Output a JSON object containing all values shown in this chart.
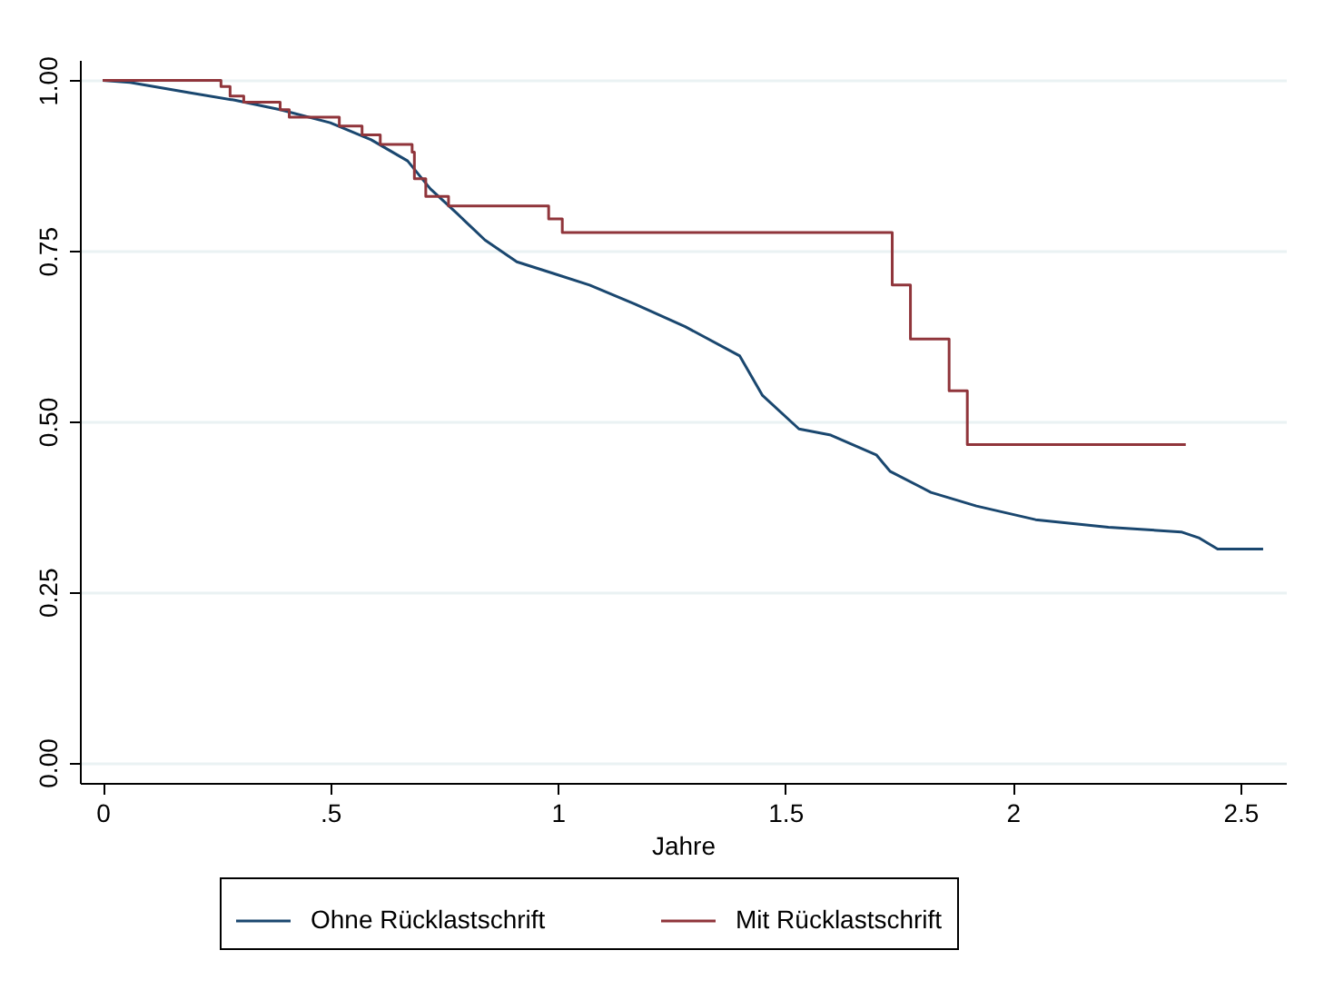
{
  "chart_data": {
    "type": "line",
    "xlabel": "Jahre",
    "xlim": [
      -0.05,
      2.6
    ],
    "xticks": [
      0,
      {
        "value": 0.5,
        "label": ".5"
      },
      1,
      1.5,
      2,
      2.5
    ],
    "ylim": [
      -0.03,
      1.03
    ],
    "yticks": [
      {
        "value": 0,
        "label": "0.00"
      },
      {
        "value": 0.25,
        "label": "0.25"
      },
      {
        "value": 0.5,
        "label": "0.50"
      },
      {
        "value": 0.75,
        "label": "0.75"
      },
      {
        "value": 1,
        "label": "1.00"
      }
    ],
    "grid": "y",
    "legend": "bottom",
    "series": [
      {
        "name": "Ohne Rücklastschrift",
        "color": "#1a476f",
        "x": [
          0,
          0.06,
          0.19,
          0.29,
          0.39,
          0.5,
          0.59,
          0.67,
          0.72,
          0.78,
          0.84,
          0.91,
          0.99,
          1.07,
          1.17,
          1.28,
          1.4,
          1.45,
          1.53,
          1.6,
          1.7,
          1.73,
          1.82,
          1.92,
          2.05,
          2.21,
          2.37,
          2.41,
          2.45,
          2.55
        ],
        "values": [
          1.0,
          0.997,
          0.982,
          0.971,
          0.957,
          0.938,
          0.913,
          0.882,
          0.841,
          0.804,
          0.766,
          0.734,
          0.717,
          0.7,
          0.672,
          0.639,
          0.596,
          0.538,
          0.489,
          0.48,
          0.451,
          0.427,
          0.396,
          0.376,
          0.356,
          0.345,
          0.338,
          0.329,
          0.313,
          0.313
        ]
      },
      {
        "name": "Mit Rücklastschrift",
        "color": "#90353b",
        "type": "step",
        "x": [
          0,
          0.26,
          0.28,
          0.31,
          0.39,
          0.41,
          0.52,
          0.57,
          0.61,
          0.68,
          0.685,
          0.71,
          0.76,
          0.98,
          1.01,
          1.735,
          1.775,
          1.86,
          1.9,
          2.38
        ],
        "values": [
          1.0,
          0.991,
          0.977,
          0.968,
          0.957,
          0.946,
          0.933,
          0.92,
          0.906,
          0.895,
          0.856,
          0.83,
          0.816,
          0.797,
          0.777,
          0.7,
          0.621,
          0.545,
          0.466,
          0.466
        ]
      }
    ]
  }
}
